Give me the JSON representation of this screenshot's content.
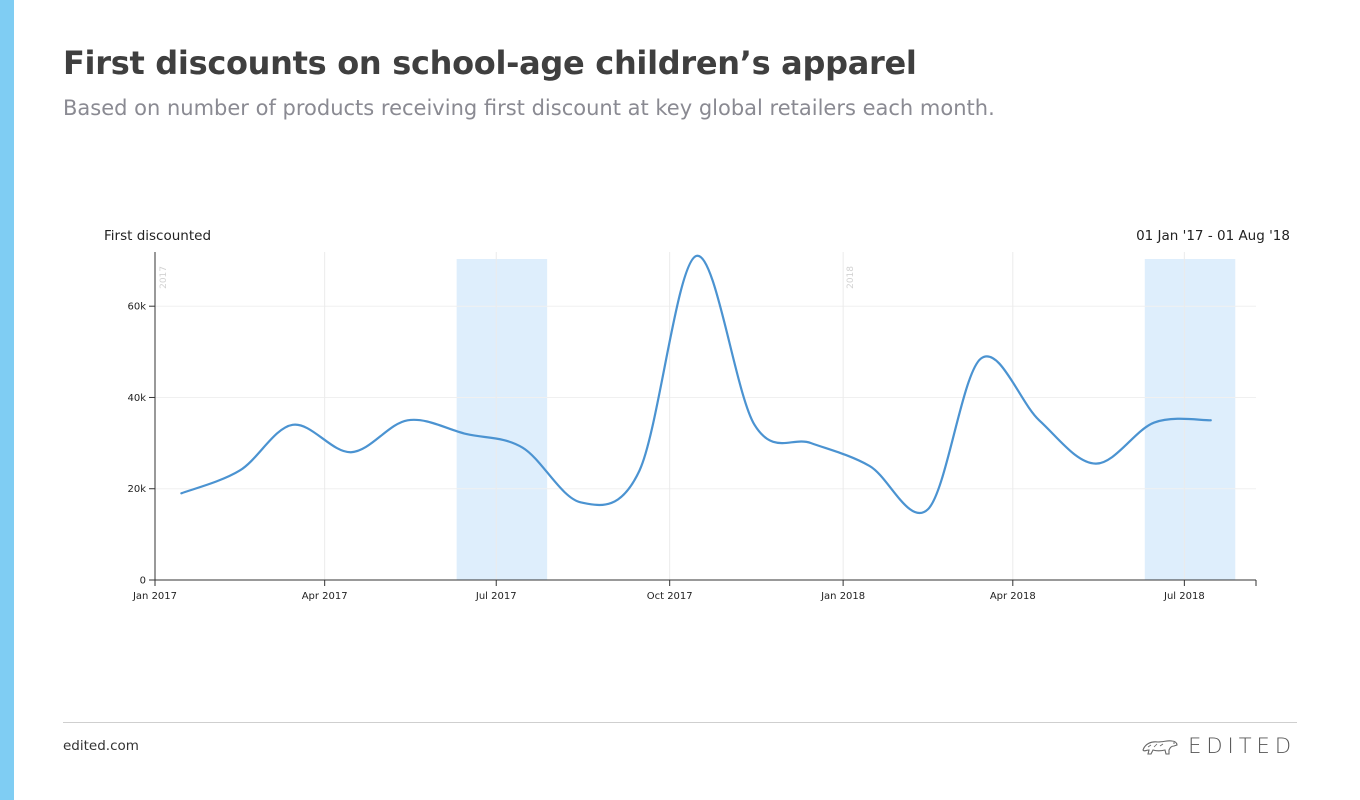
{
  "page": {
    "title": "First discounts on school-age children’s apparel",
    "subtitle": "Based on number of products receiving first discount at key global retailers each month.",
    "accent_color": "#7fcdf3"
  },
  "footer": {
    "site": "edited.com",
    "brand": "EDITED",
    "brand_icon": "polar-bear-logo"
  },
  "chart_data": {
    "type": "line",
    "title": "",
    "ylabel": "First discounted",
    "date_range": "01 Jan '17 - 01 Aug '18",
    "ylim": [
      0,
      71000
    ],
    "yticks": [
      {
        "value": 0,
        "label": "0"
      },
      {
        "value": 20000,
        "label": "20k"
      },
      {
        "value": 40000,
        "label": "40k"
      },
      {
        "value": 60000,
        "label": "60k"
      }
    ],
    "xticks": [
      {
        "date": "2017-01-01",
        "label": "Jan 2017"
      },
      {
        "date": "2017-04-01",
        "label": "Apr 2017"
      },
      {
        "date": "2017-07-01",
        "label": "Jul 2017"
      },
      {
        "date": "2017-10-01",
        "label": "Oct 2017"
      },
      {
        "date": "2018-01-01",
        "label": "Jan 2018"
      },
      {
        "date": "2018-04-01",
        "label": "Apr 2018"
      },
      {
        "date": "2018-07-01",
        "label": "Jul 2018"
      }
    ],
    "year_markers": [
      {
        "date": "2017-01-01",
        "label": "2017"
      },
      {
        "date": "2018-01-01",
        "label": "2018"
      }
    ],
    "highlight_ranges": [
      {
        "from": "2017-06-10",
        "to": "2017-07-28",
        "color": "#deeefc"
      },
      {
        "from": "2018-06-10",
        "to": "2018-07-28",
        "color": "#deeefc"
      }
    ],
    "series": [
      {
        "color": "#4b93d1",
        "points": [
          {
            "date": "2017-01-15",
            "value": 19000
          },
          {
            "date": "2017-02-15",
            "value": 24000
          },
          {
            "date": "2017-03-15",
            "value": 34000
          },
          {
            "date": "2017-04-15",
            "value": 28000
          },
          {
            "date": "2017-05-15",
            "value": 35000
          },
          {
            "date": "2017-06-15",
            "value": 32000
          },
          {
            "date": "2017-07-15",
            "value": 29000
          },
          {
            "date": "2017-08-15",
            "value": 17000
          },
          {
            "date": "2017-09-15",
            "value": 24000
          },
          {
            "date": "2017-10-15",
            "value": 71000
          },
          {
            "date": "2017-11-15",
            "value": 34000
          },
          {
            "date": "2017-12-15",
            "value": 30000
          },
          {
            "date": "2018-01-15",
            "value": 25000
          },
          {
            "date": "2018-02-15",
            "value": 15500
          },
          {
            "date": "2018-03-15",
            "value": 48500
          },
          {
            "date": "2018-04-15",
            "value": 35000
          },
          {
            "date": "2018-05-15",
            "value": 25500
          },
          {
            "date": "2018-06-15",
            "value": 34500
          },
          {
            "date": "2018-07-15",
            "value": 35000
          }
        ]
      }
    ],
    "grid": true
  }
}
